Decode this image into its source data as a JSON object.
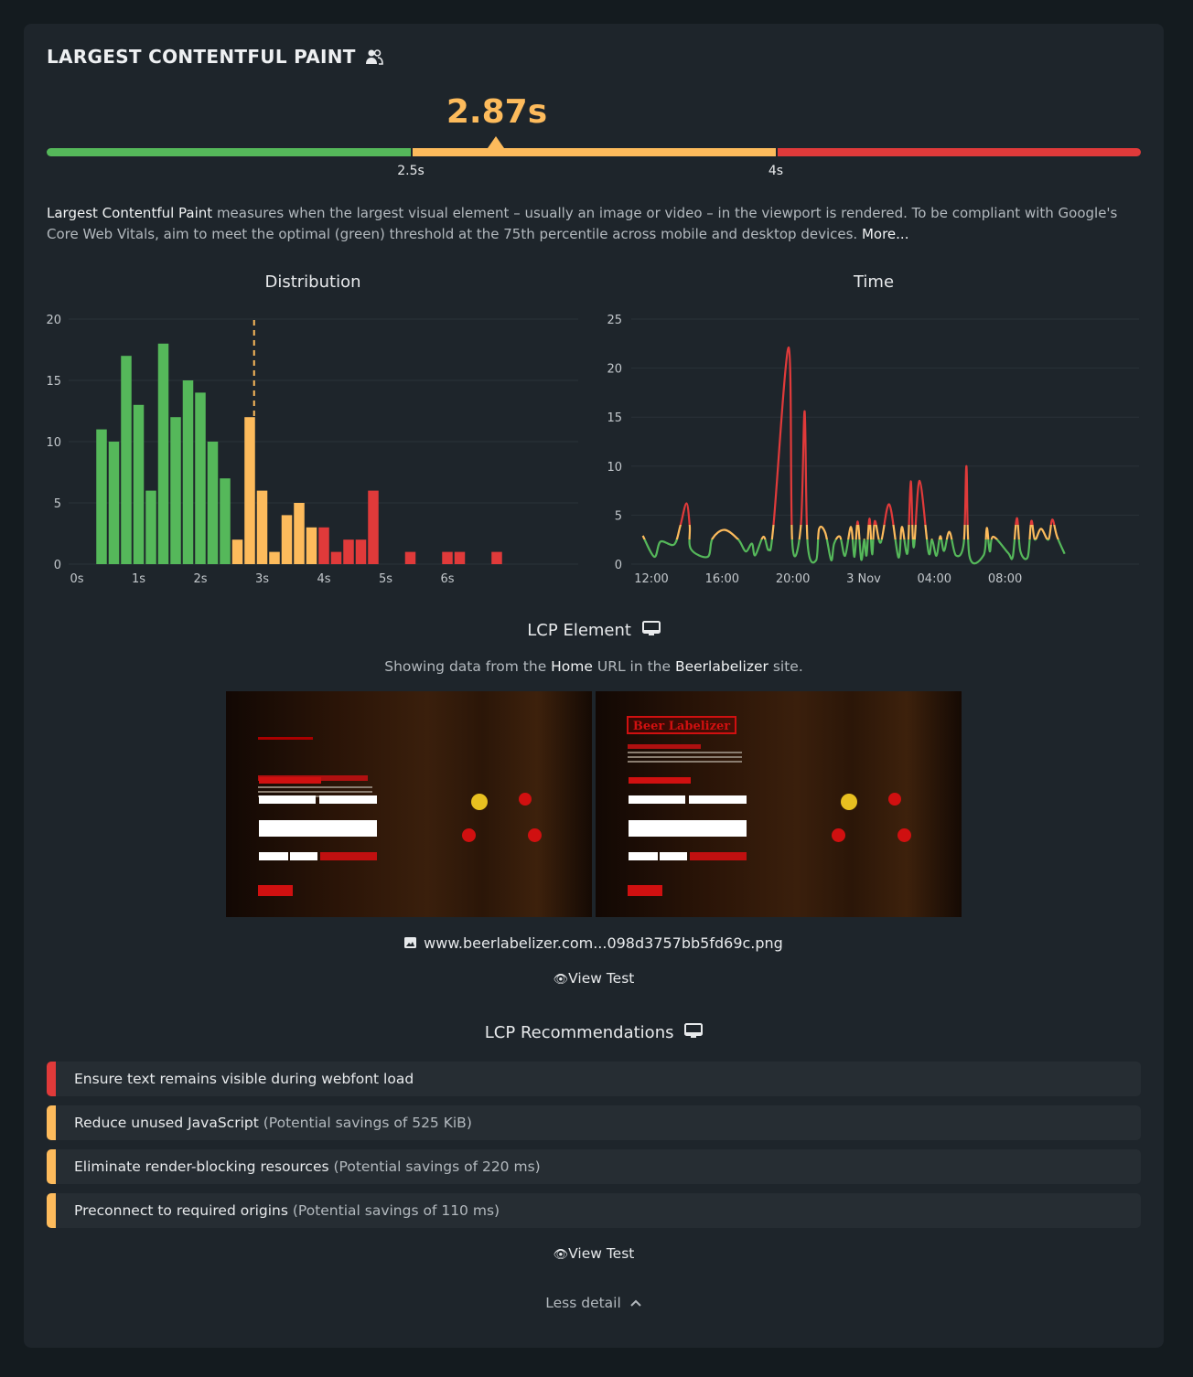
{
  "header": {
    "title": "LARGEST CONTENTFUL PAINT",
    "title_icon": "users-icon",
    "value": "2.87s",
    "value_seconds": 2.87
  },
  "threshold_bar": {
    "min": 0,
    "max": 7.5,
    "thresholds": [
      {
        "value": 2.5,
        "label": "2.5s"
      },
      {
        "value": 4,
        "label": "4s"
      }
    ],
    "colors": {
      "good": "#55b85a",
      "needs_improvement": "#fdbb5c",
      "poor": "#e03a3a"
    }
  },
  "description": {
    "term": "Largest Contentful Paint",
    "text": " measures when the largest visual element – usually an image or video – in the viewport is rendered. To be compliant with Google's Core Web Vitals, aim to meet the optimal (green) threshold at the 75th percentile across mobile and desktop devices. ",
    "more_link": "More..."
  },
  "chart_data": [
    {
      "type": "bar",
      "title": "Distribution",
      "xlabel": "",
      "ylabel": "",
      "xlim": [
        0,
        7
      ],
      "ylim": [
        0,
        20
      ],
      "x_ticks": [
        "0s",
        "1s",
        "2s",
        "3s",
        "4s",
        "5s",
        "6s"
      ],
      "y_ticks": [
        0,
        5,
        10,
        15,
        20
      ],
      "grid": true,
      "bin_width_seconds": 0.2,
      "marker_seconds": 2.87,
      "x": [
        0.4,
        0.6,
        0.8,
        1.0,
        1.2,
        1.4,
        1.6,
        1.8,
        2.0,
        2.2,
        2.4,
        2.6,
        2.8,
        3.0,
        3.2,
        3.4,
        3.6,
        3.8,
        4.0,
        4.2,
        4.4,
        4.6,
        4.8,
        5.4,
        6.0,
        6.2,
        6.8
      ],
      "values": [
        11,
        10,
        17,
        13,
        6,
        18,
        12,
        15,
        14,
        10,
        7,
        2,
        12,
        6,
        1,
        4,
        5,
        3,
        3,
        1,
        2,
        2,
        6,
        1,
        1,
        1,
        1
      ]
    },
    {
      "type": "line",
      "title": "Time",
      "xlabel": "",
      "ylabel": "",
      "ylim": [
        0,
        25
      ],
      "x_ticks": [
        "12:00",
        "16:00",
        "20:00",
        "3 Nov",
        "04:00",
        "08:00"
      ],
      "y_ticks": [
        0,
        5,
        10,
        15,
        20,
        25
      ],
      "grid": true,
      "color_thresholds": [
        2.5,
        4
      ],
      "points": [
        [
          "11:31",
          2.9
        ],
        [
          "12:10",
          0.75
        ],
        [
          "12:31",
          2.3
        ],
        [
          "13:17",
          2.0
        ],
        [
          "13:38",
          3.9
        ],
        [
          "13:59",
          6.2
        ],
        [
          "14:10",
          3.9
        ],
        [
          "14:14",
          1.55
        ],
        [
          "15:11",
          0.75
        ],
        [
          "15:27",
          2.6
        ],
        [
          "16:08",
          3.5
        ],
        [
          "16:55",
          2.5
        ],
        [
          "17:20",
          1.3
        ],
        [
          "17:41",
          2.1
        ],
        [
          "17:52",
          0.9
        ],
        [
          "18:20",
          2.8
        ],
        [
          "18:38",
          1.45
        ],
        [
          "18:54",
          3.9
        ],
        [
          "19:46",
          22.1
        ],
        [
          "19:58",
          2.2
        ],
        [
          "20:27",
          3.9
        ],
        [
          "20:40",
          15.6
        ],
        [
          "20:50",
          2.1
        ],
        [
          "21:19",
          0.4
        ],
        [
          "21:29",
          3.6
        ],
        [
          "21:50",
          3.2
        ],
        [
          "22:10",
          0.4
        ],
        [
          "22:20",
          2.1
        ],
        [
          "22:40",
          2.8
        ],
        [
          "22:57",
          0.85
        ],
        [
          "23:17",
          3.8
        ],
        [
          "23:29",
          0.75
        ],
        [
          "23:40",
          4.35
        ],
        [
          "23:52",
          0.45
        ],
        [
          "00:02",
          2.5
        ],
        [
          "00:10",
          0.9
        ],
        [
          "00:20",
          4.65
        ],
        [
          "00:29",
          1.0
        ],
        [
          "00:38",
          4.4
        ],
        [
          "00:58",
          2.2
        ],
        [
          "01:27",
          6.1
        ],
        [
          "01:58",
          0.7
        ],
        [
          "02:10",
          3.8
        ],
        [
          "02:29",
          1.15
        ],
        [
          "02:40",
          8.45
        ],
        [
          "02:50",
          1.7
        ],
        [
          "03:10",
          8.5
        ],
        [
          "03:40",
          1.25
        ],
        [
          "03:52",
          2.5
        ],
        [
          "04:07",
          0.85
        ],
        [
          "04:20",
          2.85
        ],
        [
          "04:33",
          1.35
        ],
        [
          "04:51",
          3.3
        ],
        [
          "05:13",
          0.9
        ],
        [
          "05:40",
          2.2
        ],
        [
          "05:49",
          10.0
        ],
        [
          "05:59",
          0.85
        ],
        [
          "06:47",
          0.9
        ],
        [
          "06:58",
          3.7
        ],
        [
          "07:08",
          1.3
        ],
        [
          "07:20",
          2.8
        ],
        [
          "08:10",
          1.15
        ],
        [
          "08:26",
          0.75
        ],
        [
          "08:40",
          4.7
        ],
        [
          "08:52",
          1.3
        ],
        [
          "09:17",
          0.75
        ],
        [
          "09:29",
          4.4
        ],
        [
          "09:41",
          2.5
        ],
        [
          "10:02",
          3.6
        ],
        [
          "10:27",
          2.5
        ],
        [
          "10:40",
          4.55
        ],
        [
          "10:56",
          2.85
        ],
        [
          "11:22",
          1.05
        ]
      ]
    }
  ],
  "lcp_element": {
    "title": "LCP Element",
    "title_icon": "desktop-icon",
    "source_prefix": "Showing data from the ",
    "url_name": "Home",
    "source_mid": " URL in the ",
    "site_name": "Beerlabelizer",
    "source_suffix": " site.",
    "thumbnail_logo": "Beer Labelizer",
    "file_icon": "image-icon",
    "file_name": "www.beerlabelizer.com...098d3757bb5fd69c.png",
    "view_test": "View Test"
  },
  "recommendations": {
    "title": "LCP Recommendations",
    "title_icon": "desktop-icon",
    "items": [
      {
        "label": "Ensure text remains visible during webfont load",
        "detail": "",
        "severity_color": "#e03a3a"
      },
      {
        "label": "Reduce unused JavaScript",
        "detail": " (Potential savings of 525 KiB)",
        "severity_color": "#fdbb5c"
      },
      {
        "label": "Eliminate render-blocking resources",
        "detail": " (Potential savings of 220 ms)",
        "severity_color": "#fdbb5c"
      },
      {
        "label": "Preconnect to required origins",
        "detail": " (Potential savings of 110 ms)",
        "severity_color": "#fdbb5c"
      }
    ],
    "view_test": "View Test"
  },
  "footer": {
    "less_detail": "Less detail",
    "icon": "chevron-up-icon"
  }
}
